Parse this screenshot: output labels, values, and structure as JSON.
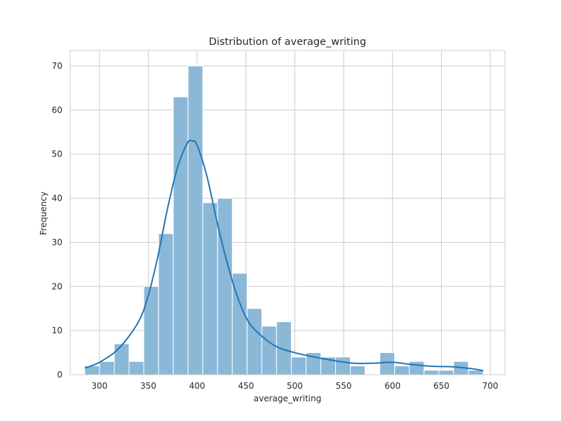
{
  "chart_data": {
    "type": "histogram",
    "title": "Distribution of average_writing",
    "xlabel": "average_writing",
    "ylabel": "Frequency",
    "xlim": [
      270,
      715
    ],
    "ylim": [
      0,
      73.5
    ],
    "xticks": [
      300,
      350,
      400,
      450,
      500,
      550,
      600,
      650,
      700
    ],
    "yticks": [
      0,
      10,
      20,
      30,
      40,
      50,
      60,
      70
    ],
    "grid": true,
    "bar_color": "#8cb8d8",
    "kde_color": "#1f77b4",
    "bins": {
      "start": 285,
      "width": 15.1,
      "counts": [
        2,
        3,
        7,
        3,
        20,
        32,
        63,
        70,
        39,
        40,
        23,
        15,
        11,
        12,
        4,
        5,
        4,
        4,
        2,
        0,
        5,
        2,
        3,
        1,
        1,
        3,
        1
      ]
    },
    "kde": {
      "x": [
        285,
        300,
        320,
        340,
        350,
        360,
        370,
        380,
        390,
        395,
        400,
        410,
        420,
        430,
        440,
        450,
        460,
        480,
        500,
        520,
        540,
        560,
        580,
        600,
        620,
        640,
        660,
        680,
        693
      ],
      "y": [
        1.5,
        2.8,
        6,
        12,
        18,
        27,
        38,
        47,
        52.5,
        53,
        52,
        45,
        35,
        26,
        18.5,
        13,
        10,
        6.5,
        5,
        4,
        3.2,
        2.6,
        2.6,
        2.8,
        2.3,
        1.9,
        1.8,
        1.4,
        0.9
      ]
    }
  }
}
